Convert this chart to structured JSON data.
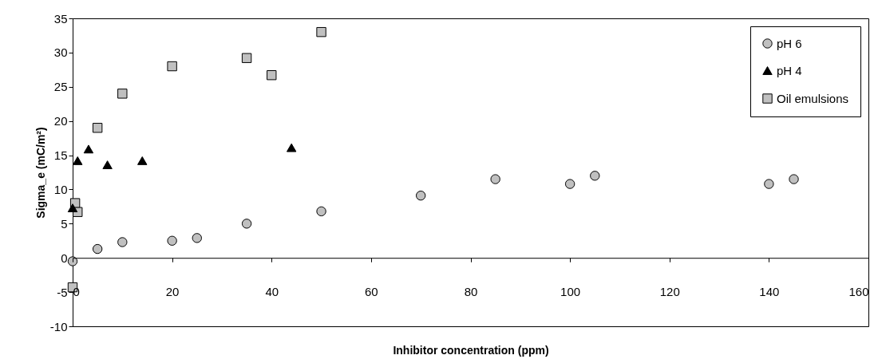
{
  "chart_data": {
    "type": "scatter",
    "xlabel": "Inhibitor concentration (ppm)",
    "ylabel": "Sigma_e (mC/m²)",
    "xlim": [
      0,
      160
    ],
    "xticks": [
      0,
      20,
      40,
      60,
      80,
      100,
      120,
      140,
      160
    ],
    "ylim": [
      -10,
      35
    ],
    "yticks": [
      -10,
      -5,
      0,
      5,
      10,
      15,
      20,
      25,
      30,
      35
    ],
    "grid": false,
    "legend": "top right",
    "series": [
      {
        "name": "pH 6",
        "color": "#c0c0c0",
        "marker": "circle",
        "x": [
          0,
          5,
          10,
          20,
          25,
          35,
          50,
          70,
          85,
          100,
          105,
          140,
          145
        ],
        "values": [
          -0.5,
          1.3,
          2.3,
          2.5,
          2.9,
          5,
          6.8,
          9.1,
          11.5,
          10.8,
          12,
          10.8,
          11.5
        ]
      },
      {
        "name": "pH 4",
        "color": "#000000",
        "marker": "triangle",
        "x": [
          0,
          1,
          3.2,
          7,
          14,
          44
        ],
        "values": [
          7.3,
          14.2,
          15.9,
          13.6,
          14.2,
          16.1
        ]
      },
      {
        "name": "Oil emulsions",
        "color": "#c0c0c0",
        "marker": "square",
        "x": [
          0,
          0.5,
          1,
          5,
          10,
          20,
          35,
          40,
          50
        ],
        "values": [
          -4.3,
          8,
          6.7,
          19,
          24,
          28,
          29.2,
          26.7,
          33
        ]
      }
    ]
  }
}
